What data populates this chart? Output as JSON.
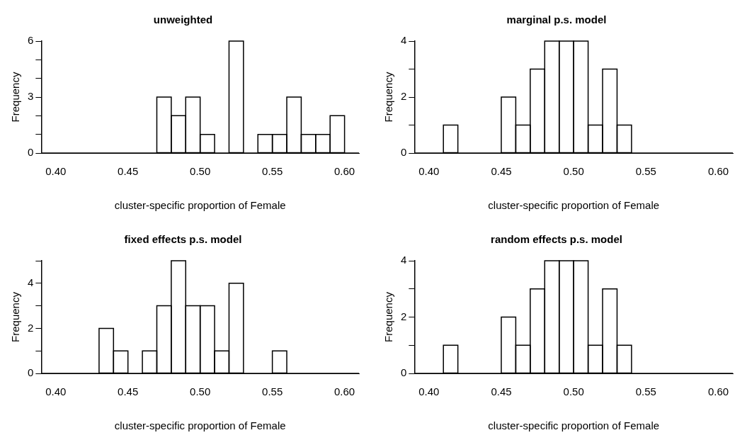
{
  "chart_data": [
    {
      "type": "histogram",
      "title": "unweighted",
      "xlabel": "cluster-specific proportion of Female",
      "ylabel": "Frequency",
      "color": "#ffffff",
      "bins": [
        0.39,
        0.4,
        0.41,
        0.42,
        0.43,
        0.44,
        0.45,
        0.46,
        0.47,
        0.48,
        0.49,
        0.5,
        0.51,
        0.52,
        0.53,
        0.54,
        0.55,
        0.56,
        0.57,
        0.58,
        0.59,
        0.6,
        0.61
      ],
      "values": [
        0,
        0,
        0,
        0,
        0,
        0,
        0,
        0,
        3,
        2,
        3,
        1,
        0,
        6,
        0,
        1,
        1,
        3,
        1,
        1,
        2,
        0
      ],
      "xlim": [
        0.39,
        0.61
      ],
      "xticks": [
        {
          "value": 0.4,
          "label": "0.40"
        },
        {
          "value": 0.45,
          "label": "0.45"
        },
        {
          "value": 0.5,
          "label": "0.50"
        },
        {
          "value": 0.55,
          "label": "0.55"
        },
        {
          "value": 0.6,
          "label": "0.60"
        }
      ],
      "ylim": [
        0,
        6
      ],
      "yticks": [
        0,
        {
          "value": 1,
          "label": null
        },
        {
          "value": 2,
          "label": null
        },
        3,
        {
          "value": 4,
          "label": null
        },
        {
          "value": 5,
          "label": null
        },
        6
      ]
    },
    {
      "type": "histogram",
      "title": "marginal p.s. model",
      "xlabel": "cluster-specific proportion of Female",
      "ylabel": "Frequency",
      "color": "#ffffff",
      "bins": [
        0.39,
        0.4,
        0.41,
        0.42,
        0.43,
        0.44,
        0.45,
        0.46,
        0.47,
        0.48,
        0.49,
        0.5,
        0.51,
        0.52,
        0.53,
        0.54,
        0.55,
        0.56,
        0.57,
        0.58,
        0.59,
        0.6,
        0.61
      ],
      "values": [
        0,
        0,
        1,
        0,
        0,
        0,
        2,
        1,
        3,
        4,
        4,
        4,
        1,
        3,
        1,
        0,
        0,
        0,
        0,
        0,
        0,
        0
      ],
      "xlim": [
        0.39,
        0.61
      ],
      "xticks": [
        {
          "value": 0.4,
          "label": "0.40"
        },
        {
          "value": 0.45,
          "label": "0.45"
        },
        {
          "value": 0.5,
          "label": "0.50"
        },
        {
          "value": 0.55,
          "label": "0.55"
        },
        {
          "value": 0.6,
          "label": "0.60"
        }
      ],
      "ylim": [
        0,
        4
      ],
      "yticks": [
        0,
        {
          "value": 1,
          "label": null
        },
        2,
        {
          "value": 3,
          "label": null
        },
        4
      ]
    },
    {
      "type": "histogram",
      "title": "fixed effects p.s. model",
      "xlabel": "cluster-specific proportion of Female",
      "ylabel": "Frequency",
      "color": "#ffffff",
      "bins": [
        0.39,
        0.4,
        0.41,
        0.42,
        0.43,
        0.44,
        0.45,
        0.46,
        0.47,
        0.48,
        0.49,
        0.5,
        0.51,
        0.52,
        0.53,
        0.54,
        0.55,
        0.56,
        0.57,
        0.58,
        0.59,
        0.6,
        0.61
      ],
      "values": [
        0,
        0,
        0,
        0,
        2,
        1,
        0,
        1,
        3,
        5,
        3,
        3,
        1,
        4,
        0,
        0,
        1,
        0,
        0,
        0,
        0,
        0
      ],
      "xlim": [
        0.39,
        0.61
      ],
      "xticks": [
        {
          "value": 0.4,
          "label": "0.40"
        },
        {
          "value": 0.45,
          "label": "0.45"
        },
        {
          "value": 0.5,
          "label": "0.50"
        },
        {
          "value": 0.55,
          "label": "0.55"
        },
        {
          "value": 0.6,
          "label": "0.60"
        }
      ],
      "ylim": [
        0,
        5
      ],
      "yticks": [
        0,
        {
          "value": 1,
          "label": null
        },
        2,
        {
          "value": 3,
          "label": null
        },
        4,
        {
          "value": 5,
          "label": null
        }
      ]
    },
    {
      "type": "histogram",
      "title": "random effects p.s. model",
      "xlabel": "cluster-specific proportion of Female",
      "ylabel": "Frequency",
      "color": "#ffffff",
      "bins": [
        0.39,
        0.4,
        0.41,
        0.42,
        0.43,
        0.44,
        0.45,
        0.46,
        0.47,
        0.48,
        0.49,
        0.5,
        0.51,
        0.52,
        0.53,
        0.54,
        0.55,
        0.56,
        0.57,
        0.58,
        0.59,
        0.6,
        0.61
      ],
      "values": [
        0,
        0,
        1,
        0,
        0,
        0,
        2,
        1,
        3,
        4,
        4,
        4,
        1,
        3,
        1,
        0,
        0,
        0,
        0,
        0,
        0,
        0
      ],
      "xlim": [
        0.39,
        0.61
      ],
      "xticks": [
        {
          "value": 0.4,
          "label": "0.40"
        },
        {
          "value": 0.45,
          "label": "0.45"
        },
        {
          "value": 0.5,
          "label": "0.50"
        },
        {
          "value": 0.55,
          "label": "0.55"
        },
        {
          "value": 0.6,
          "label": "0.60"
        }
      ],
      "ylim": [
        0,
        4
      ],
      "yticks": [
        0,
        {
          "value": 1,
          "label": null
        },
        2,
        {
          "value": 3,
          "label": null
        },
        4
      ]
    }
  ]
}
